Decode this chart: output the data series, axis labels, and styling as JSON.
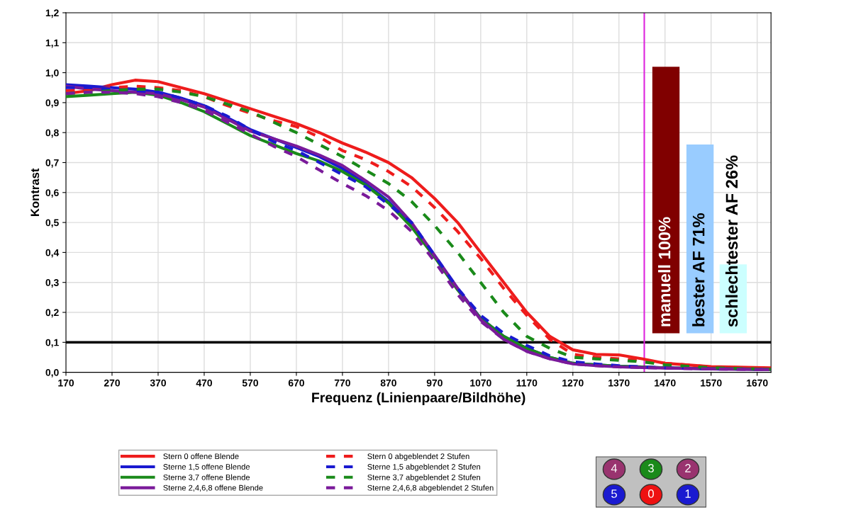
{
  "chart_data": {
    "type": "line",
    "xlabel": "Frequenz (Linienpaare/Bildhöhe)",
    "ylabel": "Kontrast",
    "xlim": [
      170,
      1700
    ],
    "ylim": [
      0,
      1.2
    ],
    "xticks": [
      170,
      270,
      370,
      470,
      570,
      670,
      770,
      870,
      970,
      1070,
      1170,
      1270,
      1370,
      1470,
      1570,
      1670
    ],
    "yticks": [
      {
        "value": 0,
        "label": "0,0"
      },
      {
        "value": 0.1,
        "label": "0,1"
      },
      {
        "value": 0.2,
        "label": "0,2"
      },
      {
        "value": 0.3,
        "label": "0,3"
      },
      {
        "value": 0.4,
        "label": "0,4"
      },
      {
        "value": 0.5,
        "label": "0,5"
      },
      {
        "value": 0.6,
        "label": "0,6"
      },
      {
        "value": 0.7,
        "label": "0,7"
      },
      {
        "value": 0.8,
        "label": "0,8"
      },
      {
        "value": 0.9,
        "label": "0,9"
      },
      {
        "value": 1.0,
        "label": "1,0"
      },
      {
        "value": 1.1,
        "label": "1,1"
      },
      {
        "value": 1.2,
        "label": "1,2"
      }
    ],
    "grid": true,
    "legend": "bottom",
    "x": [
      170,
      220,
      270,
      320,
      370,
      420,
      470,
      520,
      570,
      620,
      670,
      720,
      770,
      820,
      870,
      920,
      970,
      1020,
      1070,
      1120,
      1170,
      1220,
      1270,
      1320,
      1370,
      1420,
      1470,
      1570,
      1700
    ],
    "series": [
      {
        "name": "Stern 0 offene Blende",
        "color": "#ee1c1c",
        "line_style": "solid",
        "values": [
          0.93,
          0.94,
          0.96,
          0.975,
          0.97,
          0.95,
          0.93,
          0.905,
          0.88,
          0.855,
          0.83,
          0.8,
          0.765,
          0.735,
          0.7,
          0.65,
          0.58,
          0.5,
          0.4,
          0.3,
          0.2,
          0.12,
          0.075,
          0.06,
          0.058,
          0.045,
          0.03,
          0.019,
          0.015
        ]
      },
      {
        "name": "Sterne 1,5 offene Blende",
        "color": "#1a1ad0",
        "line_style": "solid",
        "values": [
          0.96,
          0.955,
          0.95,
          0.945,
          0.935,
          0.915,
          0.89,
          0.85,
          0.81,
          0.78,
          0.75,
          0.72,
          0.68,
          0.63,
          0.57,
          0.49,
          0.39,
          0.28,
          0.18,
          0.12,
          0.08,
          0.05,
          0.03,
          0.025,
          0.02,
          0.018,
          0.015,
          0.012,
          0.01
        ]
      },
      {
        "name": "Sterne 3,7 offene Blende",
        "color": "#1a8a1a",
        "line_style": "solid",
        "values": [
          0.92,
          0.925,
          0.93,
          0.935,
          0.925,
          0.9,
          0.87,
          0.83,
          0.79,
          0.76,
          0.73,
          0.705,
          0.67,
          0.625,
          0.565,
          0.485,
          0.385,
          0.275,
          0.18,
          0.12,
          0.08,
          0.05,
          0.03,
          0.025,
          0.02,
          0.018,
          0.015,
          0.012,
          0.01
        ]
      },
      {
        "name": "Sterne 2,4,6,8 offene Blende",
        "color": "#7a1a9a",
        "line_style": "solid",
        "values": [
          0.955,
          0.945,
          0.94,
          0.935,
          0.93,
          0.91,
          0.885,
          0.845,
          0.805,
          0.78,
          0.755,
          0.725,
          0.69,
          0.64,
          0.585,
          0.5,
          0.39,
          0.28,
          0.175,
          0.11,
          0.07,
          0.045,
          0.028,
          0.022,
          0.018,
          0.016,
          0.014,
          0.011,
          0.009
        ]
      },
      {
        "name": "Stern 0 abgeblendet 2 Stufen",
        "color": "#ee1c1c",
        "line_style": "dashed",
        "values": [
          0.94,
          0.945,
          0.95,
          0.955,
          0.95,
          0.94,
          0.92,
          0.89,
          0.865,
          0.84,
          0.82,
          0.785,
          0.74,
          0.71,
          0.67,
          0.62,
          0.55,
          0.47,
          0.38,
          0.28,
          0.19,
          0.11,
          0.06,
          0.05,
          0.045,
          0.04,
          0.03,
          0.018,
          0.012
        ]
      },
      {
        "name": "Sterne 1,5 abgeblendet 2 Stufen",
        "color": "#1a1ad0",
        "line_style": "dashed",
        "values": [
          0.95,
          0.95,
          0.945,
          0.94,
          0.935,
          0.915,
          0.89,
          0.855,
          0.81,
          0.77,
          0.74,
          0.7,
          0.66,
          0.62,
          0.56,
          0.5,
          0.39,
          0.28,
          0.19,
          0.13,
          0.09,
          0.055,
          0.035,
          0.028,
          0.022,
          0.018,
          0.015,
          0.012,
          0.01
        ]
      },
      {
        "name": "Sterne 3,7 abgeblendet 2 Stufen",
        "color": "#1a8a1a",
        "line_style": "dashed",
        "values": [
          0.93,
          0.935,
          0.94,
          0.945,
          0.945,
          0.935,
          0.92,
          0.895,
          0.87,
          0.835,
          0.8,
          0.76,
          0.72,
          0.675,
          0.63,
          0.57,
          0.49,
          0.4,
          0.3,
          0.2,
          0.12,
          0.08,
          0.05,
          0.045,
          0.04,
          0.035,
          0.025,
          0.015,
          0.01
        ]
      },
      {
        "name": "Sterne 2,4,6,8 abgeblendet 2 Stufen",
        "color": "#7a1a9a",
        "line_style": "dashed",
        "values": [
          0.93,
          0.935,
          0.935,
          0.93,
          0.92,
          0.9,
          0.875,
          0.835,
          0.795,
          0.755,
          0.72,
          0.675,
          0.63,
          0.59,
          0.54,
          0.47,
          0.37,
          0.26,
          0.17,
          0.11,
          0.07,
          0.045,
          0.028,
          0.022,
          0.018,
          0.016,
          0.014,
          0.011,
          0.009
        ]
      },
      {
        "type": "bar",
        "x": [
          1472,
          1546,
          1618
        ],
        "base": [
          0.13,
          0.13,
          0.13
        ],
        "values": [
          0.89,
          0.63,
          0.23
        ],
        "colors": [
          "#800000",
          "#99ccff",
          "#ccffff"
        ],
        "value_labels": [
          "manuell 100%",
          "bester AF 71%",
          "schlechtester AF 26%"
        ]
      }
    ],
    "ref_lines": [
      {
        "axis": "y",
        "value": 0.1,
        "color": "#000000"
      },
      {
        "axis": "x",
        "value": 1425,
        "color": "#dd22dd"
      }
    ],
    "annotations": [
      "4",
      "3",
      "2",
      "5",
      "0",
      "1"
    ]
  }
}
